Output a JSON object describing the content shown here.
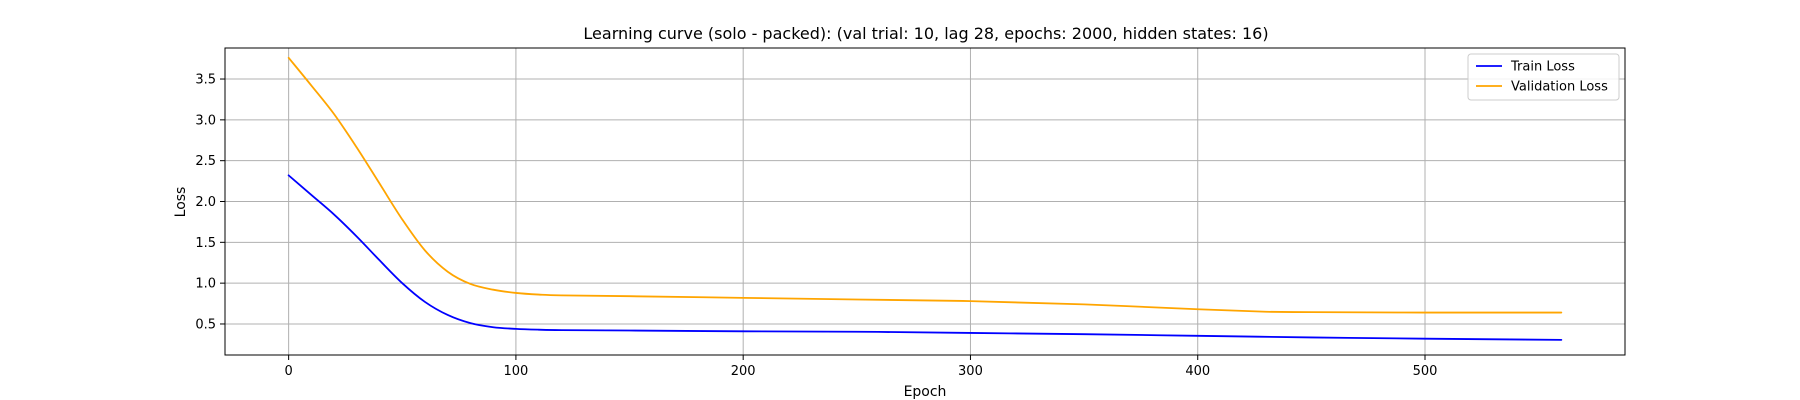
{
  "chart_data": {
    "type": "line",
    "title": "Learning curve (solo - packed): (val trial: 10, lag 28, epochs: 2000, hidden states: 16)",
    "xlabel": "Epoch",
    "ylabel": "Loss",
    "xlim": [
      -28,
      588
    ],
    "ylim": [
      0.12,
      3.88
    ],
    "xticks": [
      0,
      100,
      200,
      300,
      400,
      500
    ],
    "yticks": [
      0.5,
      1.0,
      1.5,
      2.0,
      2.5,
      3.0,
      3.5
    ],
    "grid": true,
    "legend_position": "top-right",
    "series": [
      {
        "name": "Train Loss",
        "color": "#0000ff",
        "x": [
          0,
          10,
          20,
          30,
          40,
          50,
          60,
          70,
          80,
          90,
          100,
          110,
          120,
          150,
          200,
          250,
          300,
          350,
          400,
          450,
          500,
          560
        ],
        "y": [
          2.32,
          2.08,
          1.84,
          1.57,
          1.28,
          1.0,
          0.77,
          0.61,
          0.51,
          0.46,
          0.44,
          0.43,
          0.425,
          0.42,
          0.41,
          0.405,
          0.39,
          0.375,
          0.355,
          0.335,
          0.32,
          0.305
        ]
      },
      {
        "name": "Validation Loss",
        "color": "#ffa500",
        "x": [
          0,
          10,
          20,
          30,
          40,
          50,
          60,
          70,
          80,
          90,
          100,
          110,
          120,
          150,
          200,
          250,
          300,
          350,
          400,
          430,
          450,
          500,
          560
        ],
        "y": [
          3.76,
          3.42,
          3.07,
          2.66,
          2.22,
          1.78,
          1.4,
          1.14,
          0.99,
          0.92,
          0.88,
          0.86,
          0.85,
          0.84,
          0.82,
          0.8,
          0.78,
          0.74,
          0.68,
          0.65,
          0.645,
          0.64,
          0.64
        ]
      }
    ]
  }
}
